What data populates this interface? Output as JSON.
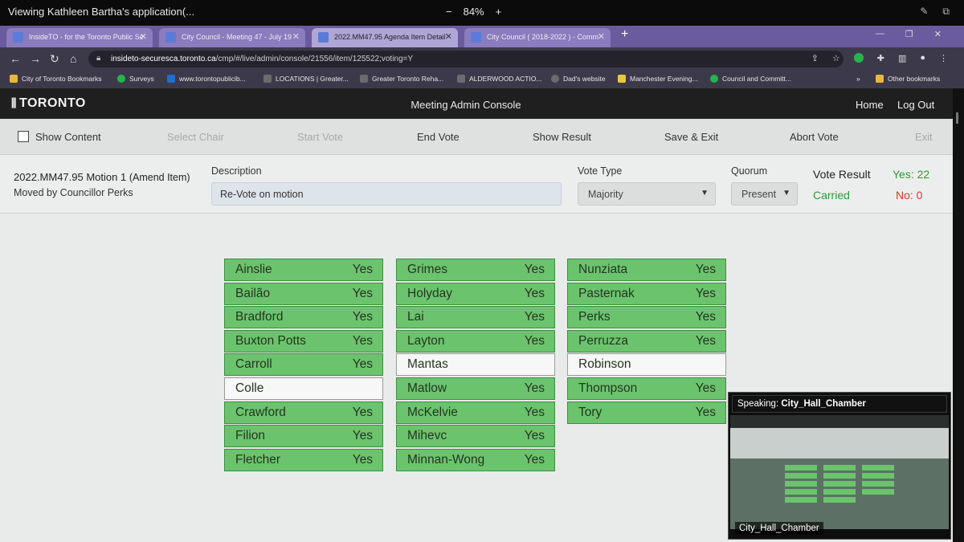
{
  "outer": {
    "title": "Viewing Kathleen Bartha's application(...",
    "zoom_minus": "−",
    "zoom_level": "84%",
    "zoom_plus": "+"
  },
  "tabs": [
    {
      "label": "InsideTO - for the Toronto Public Se",
      "active": false
    },
    {
      "label": "City Council - Meeting 47 - July 19",
      "active": false
    },
    {
      "label": "2022.MM47.95 Agenda Item Detail",
      "active": true
    },
    {
      "label": "City Council ( 2018-2022 ) - Comm",
      "active": false
    }
  ],
  "address": {
    "host": "insideto-securesca.toronto.ca",
    "path": "/cmp/#/live/admin/console/21556/item/125522;voting=Y"
  },
  "bookmarks": [
    {
      "label": "City of Toronto Bookmarks",
      "color": "#e9b73c"
    },
    {
      "label": "Surveys",
      "color": "#29b34c"
    },
    {
      "label": "www.torontopublicib...",
      "color": "#1f6fcf"
    },
    {
      "label": "LOCATIONS | Greater...",
      "color": "#6b6b6b"
    },
    {
      "label": "Greater Toronto Reha...",
      "color": "#6b6b6b"
    },
    {
      "label": "ALDERWOOD ACTIO...",
      "color": "#6b6b6b"
    },
    {
      "label": "Dad's website",
      "color": "#6b6b6b"
    },
    {
      "label": "Manchester Evening...",
      "color": "#e9c93c"
    },
    {
      "label": "Council and Committ...",
      "color": "#29b34c"
    },
    {
      "label": "»",
      "color": ""
    },
    {
      "label": "Other bookmarks",
      "color": "#e9b73c"
    }
  ],
  "header": {
    "logo": "TORONTO",
    "title": "Meeting Admin Console",
    "home": "Home",
    "logout": "Log Out"
  },
  "toolbar": {
    "show_content": "Show Content",
    "select_chair": "Select Chair",
    "start_vote": "Start Vote",
    "end_vote": "End Vote",
    "show_result": "Show Result",
    "save_exit": "Save & Exit",
    "abort_vote": "Abort Vote",
    "exit": "Exit"
  },
  "motion": {
    "id": "2022.MM47.95 Motion 1",
    "type": "(Amend Item)",
    "mover": "Moved by Councillor Perks",
    "description_label": "Description",
    "description": "Re-Vote on motion",
    "vote_type_label": "Vote Type",
    "vote_type": "Majority",
    "quorum_label": "Quorum",
    "quorum": "Present",
    "result_label": "Vote Result",
    "yes_count": "Yes: 22",
    "outcome": "Carried",
    "no_count": "No: 0"
  },
  "votes": [
    [
      {
        "name": "Ainslie",
        "vote": "Yes"
      },
      {
        "name": "Bailão",
        "vote": "Yes"
      },
      {
        "name": "Bradford",
        "vote": "Yes"
      },
      {
        "name": "Buxton Potts",
        "vote": "Yes"
      },
      {
        "name": "Carroll",
        "vote": "Yes"
      },
      {
        "name": "Colle",
        "vote": ""
      },
      {
        "name": "Crawford",
        "vote": "Yes"
      },
      {
        "name": "Filion",
        "vote": "Yes"
      },
      {
        "name": "Fletcher",
        "vote": "Yes"
      }
    ],
    [
      {
        "name": "Grimes",
        "vote": "Yes"
      },
      {
        "name": "Holyday",
        "vote": "Yes"
      },
      {
        "name": "Lai",
        "vote": "Yes"
      },
      {
        "name": "Layton",
        "vote": "Yes"
      },
      {
        "name": "Mantas",
        "vote": ""
      },
      {
        "name": "Matlow",
        "vote": "Yes"
      },
      {
        "name": "McKelvie",
        "vote": "Yes"
      },
      {
        "name": "Mihevc",
        "vote": "Yes"
      },
      {
        "name": "Minnan-Wong",
        "vote": "Yes"
      }
    ],
    [
      {
        "name": "Nunziata",
        "vote": "Yes"
      },
      {
        "name": "Pasternak",
        "vote": "Yes"
      },
      {
        "name": "Perks",
        "vote": "Yes"
      },
      {
        "name": "Perruzza",
        "vote": "Yes"
      },
      {
        "name": "Robinson",
        "vote": ""
      },
      {
        "name": "Thompson",
        "vote": "Yes"
      },
      {
        "name": "Tory",
        "vote": "Yes"
      }
    ]
  ],
  "speaker": {
    "label": "Speaking:",
    "name": "City_Hall_Chamber",
    "tile_name": "City_Hall_Chamber"
  },
  "colors": {
    "vote_yes": "#6cc36e",
    "vote_blank": "#f7f7f7",
    "carried": "#2a9a35",
    "no": "#d63a2b"
  }
}
